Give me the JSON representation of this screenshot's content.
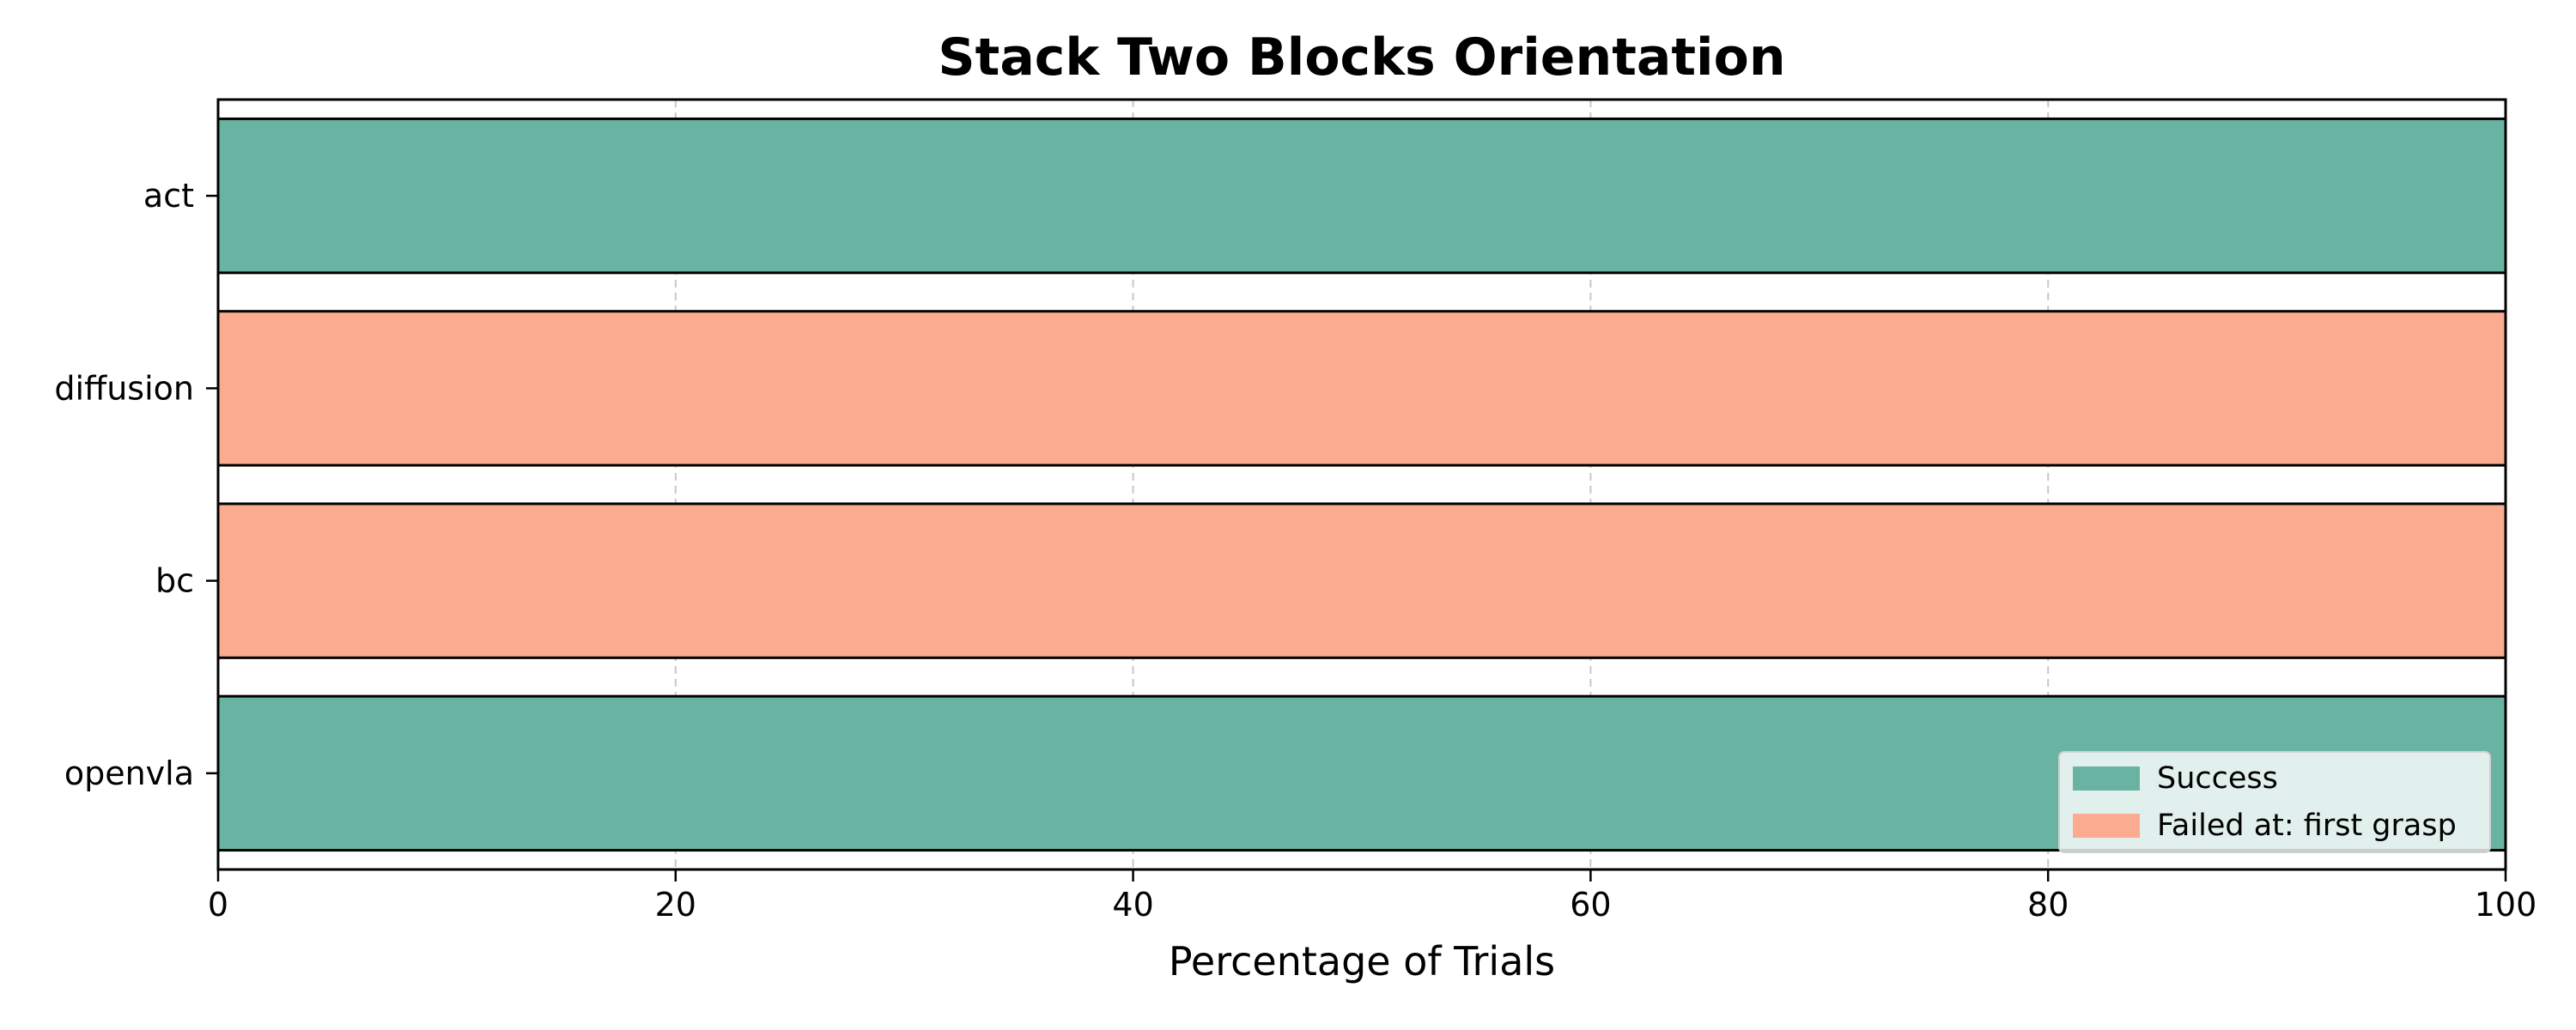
{
  "chart_data": {
    "type": "bar",
    "orientation": "horizontal",
    "stacked": true,
    "title": "Stack Two Blocks Orientation",
    "xlabel": "Percentage of Trials",
    "ylabel": "",
    "xlim": [
      0,
      100
    ],
    "x_ticks": [
      "0",
      "20",
      "40",
      "60",
      "80",
      "100"
    ],
    "categories": [
      "act",
      "diffusion",
      "bc",
      "openvla"
    ],
    "series": [
      {
        "name": "Success",
        "color": "#69b3a2",
        "values": [
          100,
          0,
          0,
          100
        ]
      },
      {
        "name": "Failed at: first grasp",
        "color": "#fbab90",
        "values": [
          0,
          100,
          100,
          0
        ]
      }
    ],
    "grid": "x-dashed",
    "legend_position": "lower-right"
  }
}
